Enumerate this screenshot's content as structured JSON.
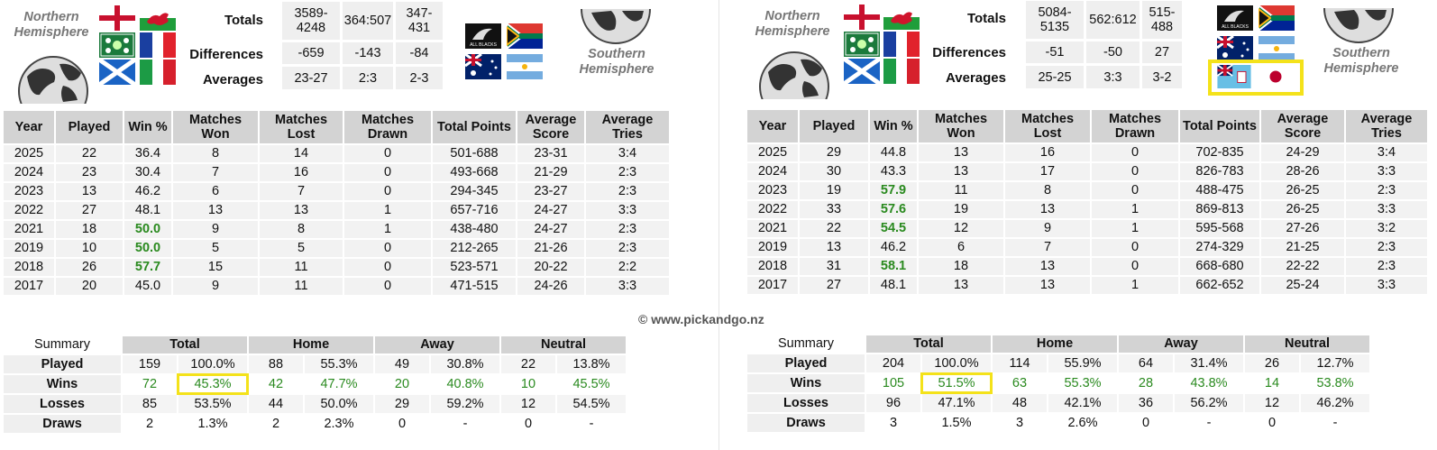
{
  "copyright": "© www.pickandgo.nz",
  "north": {
    "hemisphere_title": [
      "Northern",
      "Hemisphere"
    ],
    "flags": [
      "england-flag",
      "wales-flag",
      "ireland-flag",
      "france-flag",
      "scotland-flag",
      "italy-flag"
    ],
    "totals": {
      "labels": [
        "Totals",
        "Differences",
        "Averages"
      ],
      "rows": [
        [
          "3589-4248",
          "364:507",
          "347-431"
        ],
        [
          "-659",
          "-143",
          "-84"
        ],
        [
          "23-27",
          "2:3",
          "2-3"
        ]
      ]
    },
    "table": {
      "headers": [
        "Year",
        "Played",
        "Win %",
        "Matches Won",
        "Matches Lost",
        "Matches Drawn",
        "Total Points",
        "Average Score",
        "Average Tries"
      ],
      "rows": [
        [
          "2025",
          "22",
          "36.4",
          "8",
          "14",
          "0",
          "501-688",
          "23-31",
          "3:4"
        ],
        [
          "2024",
          "23",
          "30.4",
          "7",
          "16",
          "0",
          "493-668",
          "21-29",
          "2:3"
        ],
        [
          "2023",
          "13",
          "46.2",
          "6",
          "7",
          "0",
          "294-345",
          "23-27",
          "2:3"
        ],
        [
          "2022",
          "27",
          "48.1",
          "13",
          "13",
          "1",
          "657-716",
          "24-27",
          "3:3"
        ],
        [
          "2021",
          "18",
          "50.0",
          "9",
          "8",
          "1",
          "438-480",
          "24-27",
          "2:3"
        ],
        [
          "2019",
          "10",
          "50.0",
          "5",
          "5",
          "0",
          "212-265",
          "21-26",
          "2:3"
        ],
        [
          "2018",
          "26",
          "57.7",
          "15",
          "11",
          "0",
          "523-571",
          "20-22",
          "2:2"
        ],
        [
          "2017",
          "20",
          "45.0",
          "9",
          "11",
          "0",
          "471-515",
          "24-26",
          "3:3"
        ]
      ],
      "green_rows": [
        4,
        5,
        6
      ]
    },
    "summary": {
      "label": "Summary",
      "groups": [
        "Total",
        "Home",
        "Away",
        "Neutral"
      ],
      "rows": [
        {
          "label": "Played",
          "cells": [
            "159",
            "100.0%",
            "88",
            "55.3%",
            "49",
            "30.8%",
            "22",
            "13.8%"
          ],
          "green": false
        },
        {
          "label": "Wins",
          "cells": [
            "72",
            "45.3%",
            "42",
            "47.7%",
            "20",
            "40.8%",
            "10",
            "45.5%"
          ],
          "green": true
        },
        {
          "label": "Losses",
          "cells": [
            "85",
            "53.5%",
            "44",
            "50.0%",
            "29",
            "59.2%",
            "12",
            "54.5%"
          ],
          "green": false
        },
        {
          "label": "Draws",
          "cells": [
            "2",
            "1.3%",
            "2",
            "2.3%",
            "0",
            "-",
            "0",
            "-"
          ],
          "green": false
        }
      ]
    }
  },
  "south": {
    "hemisphere_title": [
      "Southern",
      "Hemisphere"
    ],
    "flags": [
      "all-blacks-logo",
      "south-africa-flag",
      "australia-flag",
      "argentina-flag",
      "fiji-flag",
      "japan-flag"
    ],
    "all_blacks_text": "ALL BLACKS",
    "totals": {
      "labels": [
        "Totals",
        "Differences",
        "Averages"
      ],
      "rows": [
        [
          "5084-5135",
          "562:612",
          "515-488"
        ],
        [
          "-51",
          "-50",
          "27"
        ],
        [
          "25-25",
          "3:3",
          "3-2"
        ]
      ]
    },
    "table": {
      "headers": [
        "Year",
        "Played",
        "Win %",
        "Matches Won",
        "Matches Lost",
        "Matches Drawn",
        "Total Points",
        "Average Score",
        "Average Tries"
      ],
      "rows": [
        [
          "2025",
          "29",
          "44.8",
          "13",
          "16",
          "0",
          "702-835",
          "24-29",
          "3:4"
        ],
        [
          "2024",
          "30",
          "43.3",
          "13",
          "17",
          "0",
          "826-783",
          "28-26",
          "3:3"
        ],
        [
          "2023",
          "19",
          "57.9",
          "11",
          "8",
          "0",
          "488-475",
          "26-25",
          "2:3"
        ],
        [
          "2022",
          "33",
          "57.6",
          "19",
          "13",
          "1",
          "869-813",
          "26-25",
          "3:3"
        ],
        [
          "2021",
          "22",
          "54.5",
          "12",
          "9",
          "1",
          "595-568",
          "27-26",
          "3:2"
        ],
        [
          "2019",
          "13",
          "46.2",
          "6",
          "7",
          "0",
          "274-329",
          "21-25",
          "2:3"
        ],
        [
          "2018",
          "31",
          "58.1",
          "18",
          "13",
          "0",
          "668-680",
          "22-22",
          "2:3"
        ],
        [
          "2017",
          "27",
          "48.1",
          "13",
          "13",
          "1",
          "662-652",
          "25-24",
          "3:3"
        ]
      ],
      "green_rows": [
        2,
        3,
        4,
        6
      ]
    },
    "summary": {
      "label": "Summary",
      "groups": [
        "Total",
        "Home",
        "Away",
        "Neutral"
      ],
      "rows": [
        {
          "label": "Played",
          "cells": [
            "204",
            "100.0%",
            "114",
            "55.9%",
            "64",
            "31.4%",
            "26",
            "12.7%"
          ],
          "green": false
        },
        {
          "label": "Wins",
          "cells": [
            "105",
            "51.5%",
            "63",
            "55.3%",
            "28",
            "43.8%",
            "14",
            "53.8%"
          ],
          "green": true
        },
        {
          "label": "Losses",
          "cells": [
            "96",
            "47.1%",
            "48",
            "42.1%",
            "36",
            "56.2%",
            "12",
            "46.2%"
          ],
          "green": false
        },
        {
          "label": "Draws",
          "cells": [
            "3",
            "1.5%",
            "3",
            "2.6%",
            "0",
            "-",
            "0",
            "-"
          ],
          "green": false
        }
      ]
    }
  }
}
